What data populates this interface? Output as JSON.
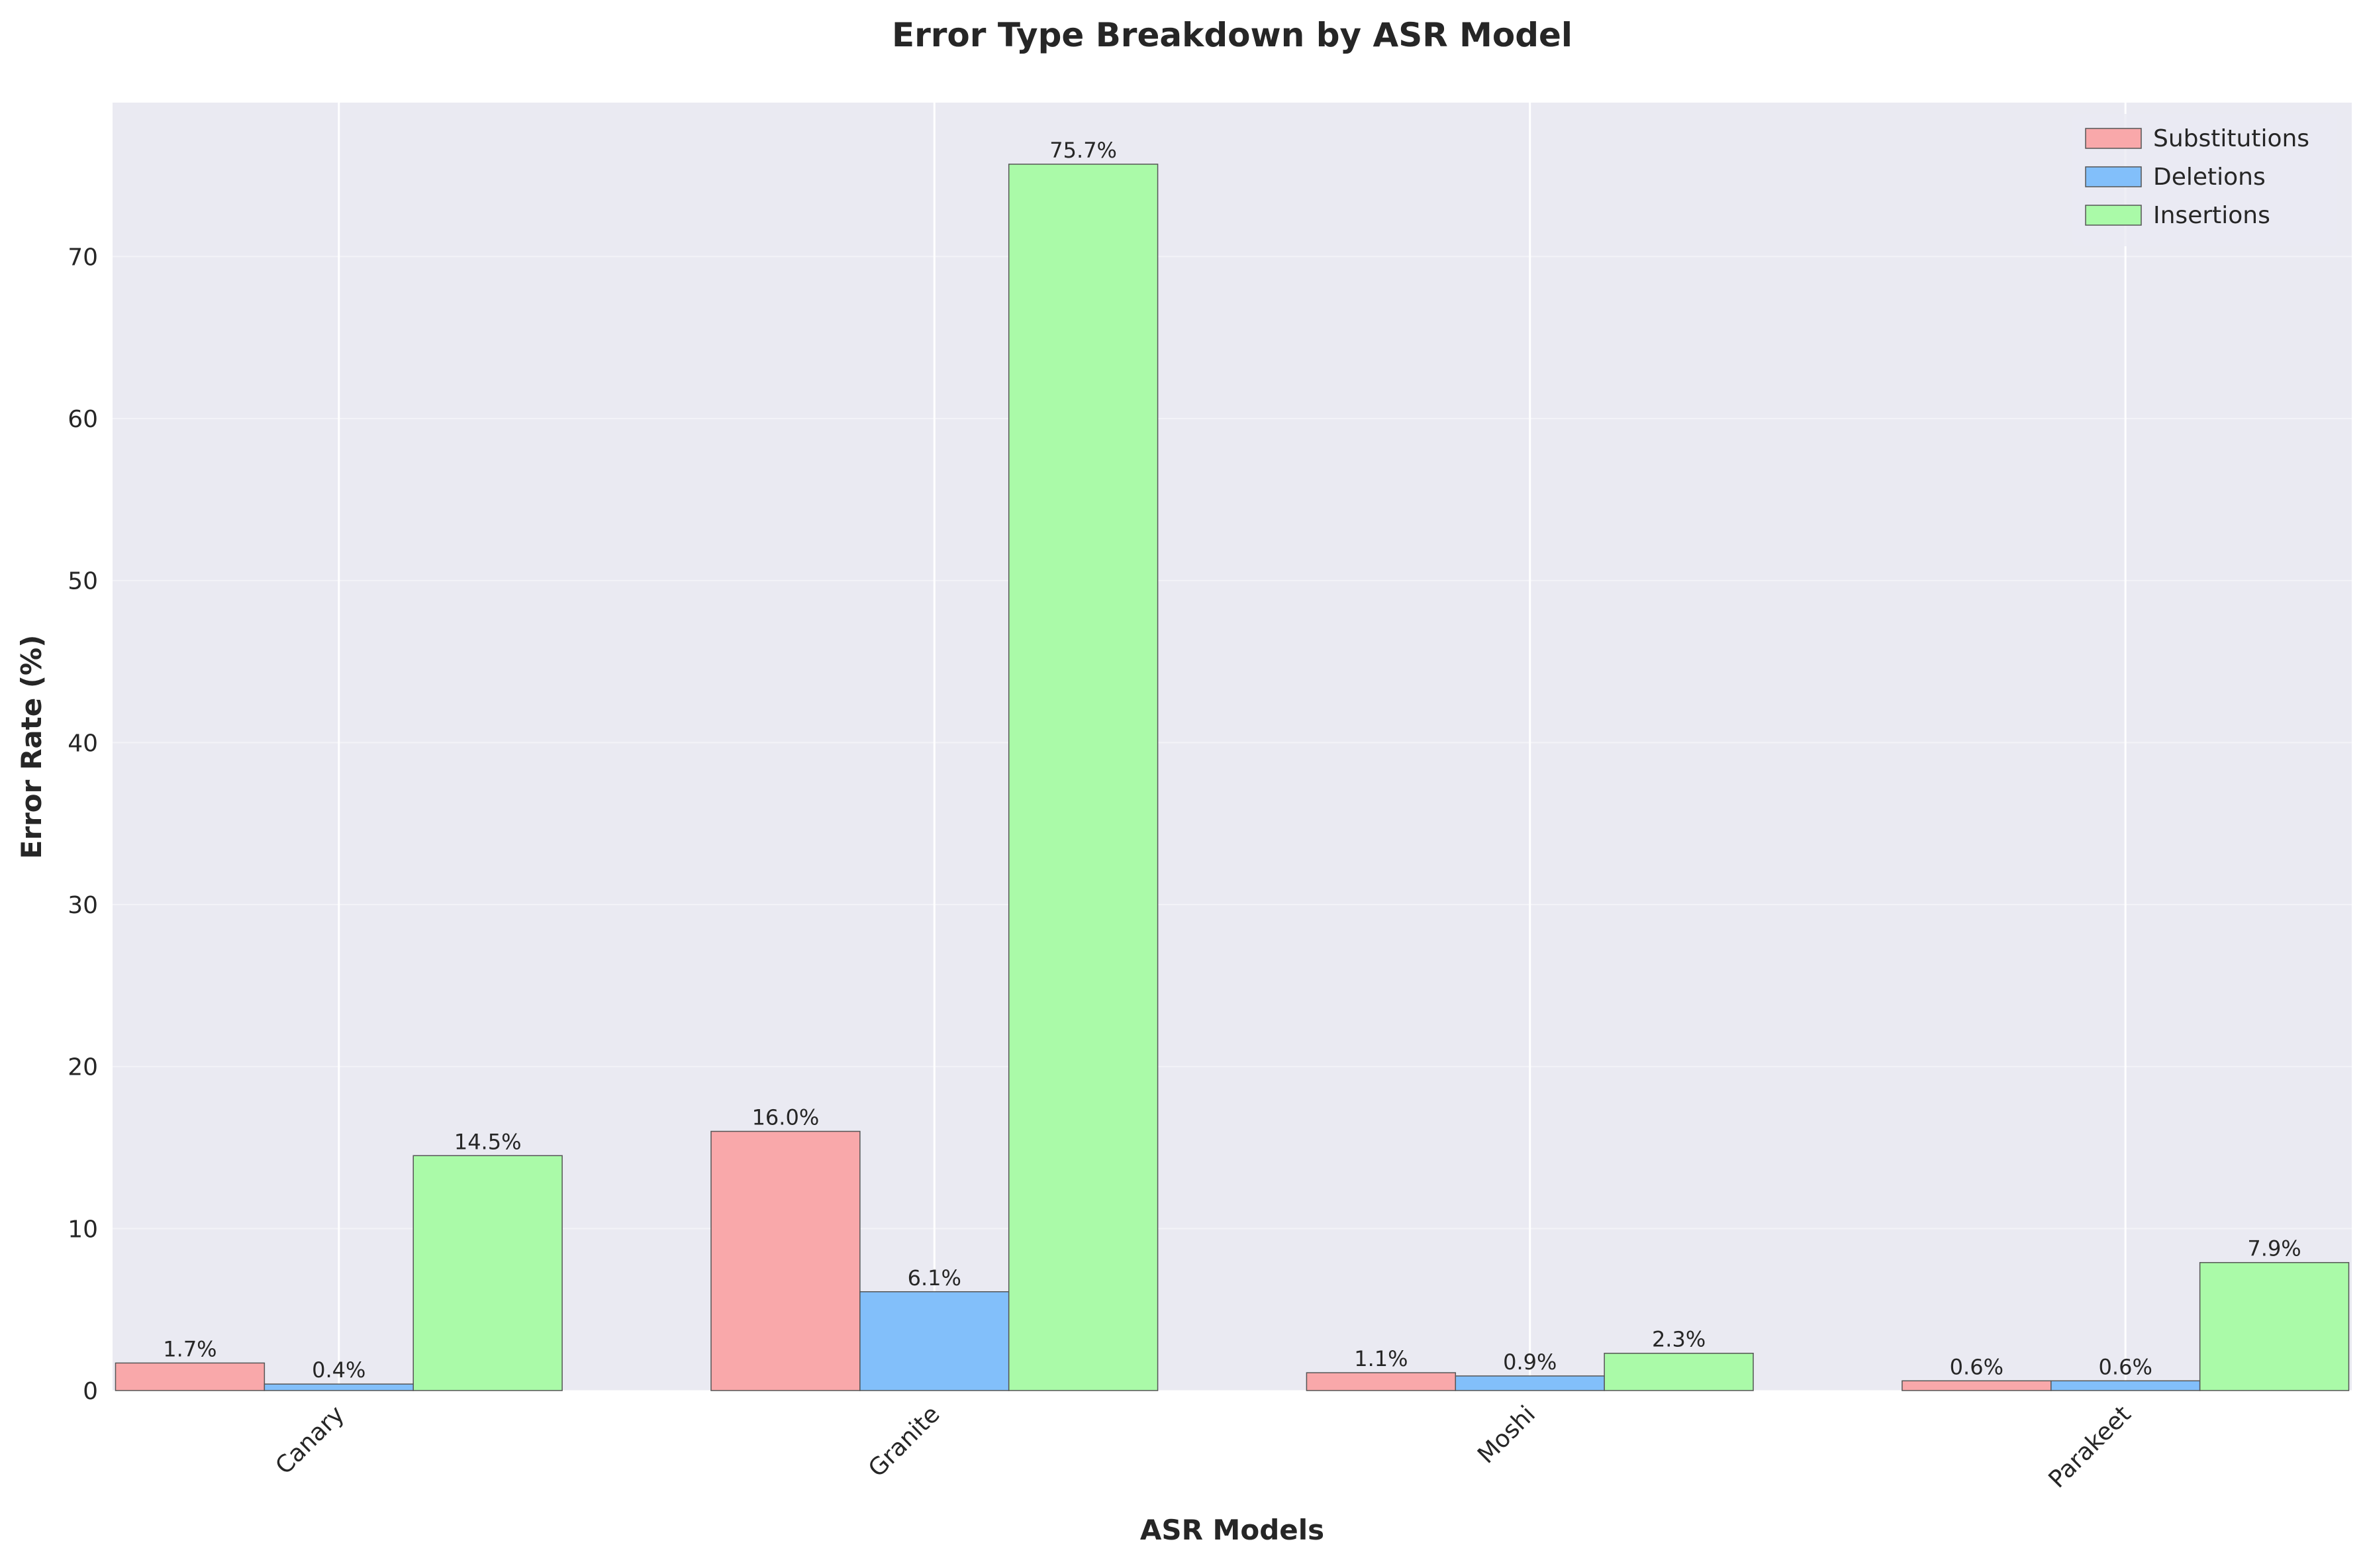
{
  "chart_data": {
    "type": "bar",
    "title": "Error Type Breakdown by ASR Model",
    "xlabel": "ASR Models",
    "ylabel": "Error Rate (%)",
    "categories": [
      "Canary",
      "Granite",
      "Moshi",
      "Parakeet"
    ],
    "series": [
      {
        "name": "Substitutions",
        "color": "#f9a8aa",
        "values": [
          1.7,
          16.0,
          1.1,
          0.6
        ],
        "labels": [
          "1.7%",
          "16.0%",
          "1.1%",
          "0.6%"
        ]
      },
      {
        "name": "Deletions",
        "color": "#82bffa",
        "values": [
          0.4,
          6.1,
          0.9,
          0.6
        ],
        "labels": [
          "0.4%",
          "6.1%",
          "0.9%",
          "0.6%"
        ]
      },
      {
        "name": "Insertions",
        "color": "#aafaa8",
        "values": [
          14.5,
          75.7,
          2.3,
          7.9
        ],
        "labels": [
          "14.5%",
          "75.7%",
          "2.3%",
          "7.9%"
        ]
      }
    ],
    "ylim": [
      0,
      79.5
    ],
    "yticks": [
      0,
      10,
      20,
      30,
      40,
      50,
      60,
      70
    ],
    "ytick_labels": [
      "0",
      "10",
      "20",
      "30",
      "40",
      "50",
      "60",
      "70"
    ],
    "grid": true,
    "legend_position": "top-right",
    "background_color": "#eaeaf2"
  }
}
